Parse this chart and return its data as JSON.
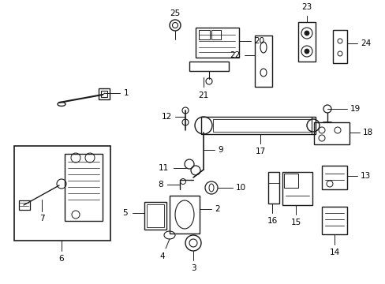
{
  "background_color": "#ffffff",
  "line_color": "#1a1a1a",
  "gray_color": "#888888",
  "figsize": [
    4.89,
    3.6
  ],
  "dpi": 100
}
